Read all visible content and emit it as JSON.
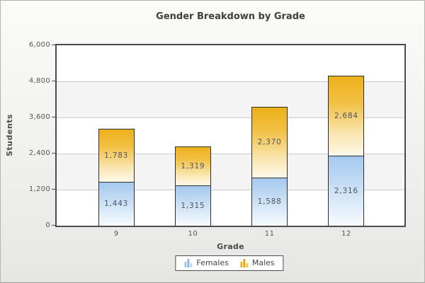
{
  "chart_data": {
    "type": "bar",
    "stacked": true,
    "title": "Gender Breakdown by Grade",
    "xlabel": "Grade",
    "ylabel": "Students",
    "categories": [
      "9",
      "10",
      "11",
      "12"
    ],
    "series": [
      {
        "name": "Females",
        "values": [
          1443,
          1315,
          1588,
          2316
        ],
        "labels": [
          "1,443",
          "1,315",
          "1,588",
          "2,316"
        ],
        "gradient": [
          "#a5c9ee 0%",
          "#c9dff5 45%",
          "#f7fbfe 100%"
        ],
        "legend_icon_colors": [
          "#a9c9e9",
          "#8fb7e3",
          "#c3d9ef"
        ]
      },
      {
        "name": "Males",
        "values": [
          1783,
          1319,
          2370,
          2684
        ],
        "labels": [
          "1,783",
          "1,319",
          "2,370",
          "2,684"
        ],
        "gradient": [
          "#eeb01b 0%",
          "#f2c044 33%",
          "#f9e5af 72%",
          "#fdf8e9 100%"
        ],
        "legend_icon_colors": [
          "#eeb32a",
          "#e7a70f",
          "#f3c94f"
        ]
      }
    ],
    "ylim": [
      0,
      6000
    ],
    "y_ticks": [
      {
        "value": 0,
        "label": "0"
      },
      {
        "value": 1200,
        "label": "1,200"
      },
      {
        "value": 2400,
        "label": "2,400"
      },
      {
        "value": 3600,
        "label": "3,600"
      },
      {
        "value": 4800,
        "label": "4,800"
      },
      {
        "value": 6000,
        "label": "6,000"
      }
    ],
    "grid": true,
    "legend_position": "bottom",
    "colors": {
      "plot_border": "#4c4c4c",
      "gridline": "#cbcbcb",
      "band_alt": "#f4f4f4",
      "bar_border": "#2f2f2f",
      "value_label": "#4d5560",
      "tick_label": "#555555",
      "title": "#3f3f3f"
    }
  }
}
